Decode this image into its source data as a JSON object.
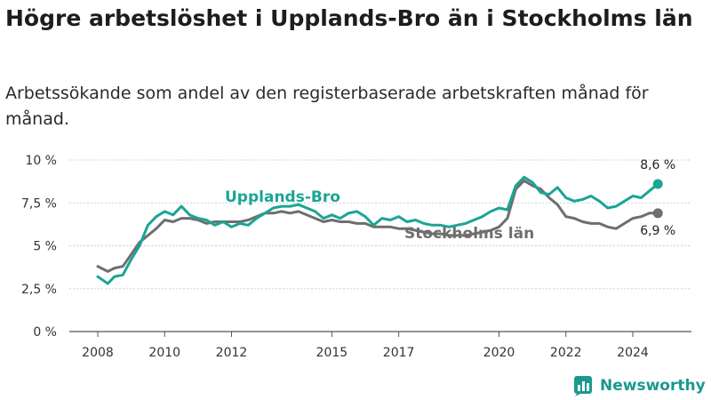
{
  "header": {
    "title": "Högre arbetslöshet i Upplands-Bro än i Stockholms län",
    "subtitle": "Arbetssökande som andel av den registerbaserade arbetskraften månad för månad."
  },
  "branding": {
    "name": "Newsworthy",
    "icon": "newsworthy-logo-icon"
  },
  "chart_data": {
    "type": "line",
    "yticks": [
      "0 %",
      "2,5 %",
      "5 %",
      "7,5 %",
      "10 %"
    ],
    "ytick_values": [
      0,
      2.5,
      5,
      7.5,
      10
    ],
    "xticks": [
      "2008",
      "2010",
      "2012",
      "2015",
      "2017",
      "2020",
      "2022",
      "2024"
    ],
    "xtick_values": [
      2008,
      2010,
      2012,
      2015,
      2017,
      2020,
      2022,
      2024
    ],
    "ylim": [
      0,
      10
    ],
    "xlim": [
      2008,
      2025
    ],
    "grid": true,
    "series": [
      {
        "name": "Upplands-Bro",
        "color": "#1aa595",
        "end_label": "8,6 %",
        "points": [
          [
            2008.0,
            3.2
          ],
          [
            2008.3,
            2.8
          ],
          [
            2008.5,
            3.2
          ],
          [
            2008.75,
            3.3
          ],
          [
            2009.0,
            4.2
          ],
          [
            2009.25,
            5.0
          ],
          [
            2009.5,
            6.2
          ],
          [
            2009.75,
            6.7
          ],
          [
            2010.0,
            7.0
          ],
          [
            2010.25,
            6.8
          ],
          [
            2010.5,
            7.3
          ],
          [
            2010.75,
            6.8
          ],
          [
            2011.0,
            6.6
          ],
          [
            2011.25,
            6.5
          ],
          [
            2011.5,
            6.2
          ],
          [
            2011.75,
            6.4
          ],
          [
            2012.0,
            6.1
          ],
          [
            2012.25,
            6.3
          ],
          [
            2012.5,
            6.2
          ],
          [
            2012.75,
            6.6
          ],
          [
            2013.0,
            6.9
          ],
          [
            2013.25,
            7.2
          ],
          [
            2013.5,
            7.3
          ],
          [
            2013.75,
            7.3
          ],
          [
            2014.0,
            7.4
          ],
          [
            2014.25,
            7.2
          ],
          [
            2014.5,
            7.0
          ],
          [
            2014.75,
            6.6
          ],
          [
            2015.0,
            6.8
          ],
          [
            2015.25,
            6.6
          ],
          [
            2015.5,
            6.9
          ],
          [
            2015.75,
            7.0
          ],
          [
            2016.0,
            6.7
          ],
          [
            2016.25,
            6.2
          ],
          [
            2016.5,
            6.6
          ],
          [
            2016.75,
            6.5
          ],
          [
            2017.0,
            6.7
          ],
          [
            2017.25,
            6.4
          ],
          [
            2017.5,
            6.5
          ],
          [
            2017.75,
            6.3
          ],
          [
            2018.0,
            6.2
          ],
          [
            2018.25,
            6.2
          ],
          [
            2018.5,
            6.1
          ],
          [
            2018.75,
            6.2
          ],
          [
            2019.0,
            6.3
          ],
          [
            2019.25,
            6.5
          ],
          [
            2019.5,
            6.7
          ],
          [
            2019.75,
            7.0
          ],
          [
            2020.0,
            7.2
          ],
          [
            2020.25,
            7.1
          ],
          [
            2020.5,
            8.5
          ],
          [
            2020.75,
            9.0
          ],
          [
            2021.0,
            8.7
          ],
          [
            2021.25,
            8.1
          ],
          [
            2021.5,
            8.0
          ],
          [
            2021.75,
            8.4
          ],
          [
            2022.0,
            7.8
          ],
          [
            2022.25,
            7.6
          ],
          [
            2022.5,
            7.7
          ],
          [
            2022.75,
            7.9
          ],
          [
            2023.0,
            7.6
          ],
          [
            2023.25,
            7.2
          ],
          [
            2023.5,
            7.3
          ],
          [
            2023.75,
            7.6
          ],
          [
            2024.0,
            7.9
          ],
          [
            2024.25,
            7.8
          ],
          [
            2024.5,
            8.2
          ],
          [
            2024.75,
            8.6
          ]
        ]
      },
      {
        "name": "Stockholms län",
        "color": "#6e6e6e",
        "end_label": "6,9 %",
        "points": [
          [
            2008.0,
            3.8
          ],
          [
            2008.3,
            3.5
          ],
          [
            2008.5,
            3.7
          ],
          [
            2008.75,
            3.8
          ],
          [
            2009.0,
            4.5
          ],
          [
            2009.25,
            5.2
          ],
          [
            2009.5,
            5.6
          ],
          [
            2009.75,
            6.0
          ],
          [
            2010.0,
            6.5
          ],
          [
            2010.25,
            6.4
          ],
          [
            2010.5,
            6.6
          ],
          [
            2010.75,
            6.6
          ],
          [
            2011.0,
            6.5
          ],
          [
            2011.25,
            6.3
          ],
          [
            2011.5,
            6.4
          ],
          [
            2011.75,
            6.4
          ],
          [
            2012.0,
            6.4
          ],
          [
            2012.25,
            6.4
          ],
          [
            2012.5,
            6.5
          ],
          [
            2012.75,
            6.7
          ],
          [
            2013.0,
            6.9
          ],
          [
            2013.25,
            6.9
          ],
          [
            2013.5,
            7.0
          ],
          [
            2013.75,
            6.9
          ],
          [
            2014.0,
            7.0
          ],
          [
            2014.25,
            6.8
          ],
          [
            2014.5,
            6.6
          ],
          [
            2014.75,
            6.4
          ],
          [
            2015.0,
            6.5
          ],
          [
            2015.25,
            6.4
          ],
          [
            2015.5,
            6.4
          ],
          [
            2015.75,
            6.3
          ],
          [
            2016.0,
            6.3
          ],
          [
            2016.25,
            6.1
          ],
          [
            2016.5,
            6.1
          ],
          [
            2016.75,
            6.1
          ],
          [
            2017.0,
            6.0
          ],
          [
            2017.25,
            6.0
          ],
          [
            2017.5,
            5.9
          ],
          [
            2017.75,
            5.8
          ],
          [
            2018.0,
            5.7
          ],
          [
            2018.25,
            5.7
          ],
          [
            2018.5,
            5.6
          ],
          [
            2018.75,
            5.6
          ],
          [
            2019.0,
            5.6
          ],
          [
            2019.25,
            5.7
          ],
          [
            2019.5,
            5.8
          ],
          [
            2019.75,
            5.9
          ],
          [
            2020.0,
            6.1
          ],
          [
            2020.25,
            6.6
          ],
          [
            2020.5,
            8.3
          ],
          [
            2020.75,
            8.8
          ],
          [
            2021.0,
            8.5
          ],
          [
            2021.25,
            8.3
          ],
          [
            2021.5,
            7.8
          ],
          [
            2021.75,
            7.4
          ],
          [
            2022.0,
            6.7
          ],
          [
            2022.25,
            6.6
          ],
          [
            2022.5,
            6.4
          ],
          [
            2022.75,
            6.3
          ],
          [
            2023.0,
            6.3
          ],
          [
            2023.25,
            6.1
          ],
          [
            2023.5,
            6.0
          ],
          [
            2023.75,
            6.3
          ],
          [
            2024.0,
            6.6
          ],
          [
            2024.25,
            6.7
          ],
          [
            2024.5,
            6.9
          ],
          [
            2024.75,
            6.9
          ]
        ]
      }
    ]
  }
}
